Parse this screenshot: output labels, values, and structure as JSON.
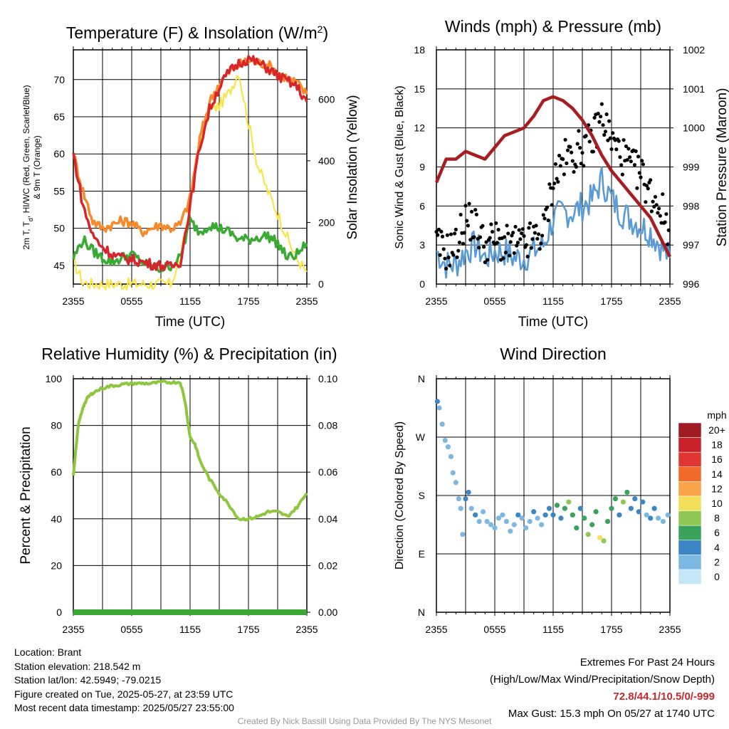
{
  "colors": {
    "temp": "#d7262b",
    "dew": "#3aaa35",
    "heat_index": "#4a3acb",
    "t9m": "#f58a2c",
    "solar": "#fbe44a",
    "wind": "#5b9bd5",
    "gust": "#000000",
    "pressure": "#a71d20",
    "rh": "#8dc63f",
    "precip": "#3aaa35"
  },
  "chart_data": [
    {
      "type": "line",
      "title": "Temperature (F) & Insolation (W/m²)",
      "title_main": "Temperature (F) & Insolation (W/m",
      "title_sup": "2",
      "title_end": ")",
      "xlabel": "Time (UTC)",
      "ylabel_line1": "2m T, T",
      "ylabel_sub": "d",
      "ylabel_line1_end": ", HI/WC (Red, Green, Scarlet/Blue)",
      "ylabel_line2": "& 9m T (Orange)",
      "y2label": "Solar Insolation (Yellow)",
      "x_ticks": [
        "2355",
        "0555",
        "1155",
        "1755",
        "2355"
      ],
      "ylim": [
        42.5,
        74
      ],
      "y_ticks": [
        "45",
        "50",
        "55",
        "60",
        "65",
        "70"
      ],
      "y2lim": [
        0,
        760
      ],
      "y2_ticks": [
        "0",
        "200",
        "400",
        "600"
      ],
      "x": [
        0,
        1,
        2,
        3,
        4,
        5,
        6,
        7,
        8,
        9,
        10,
        11,
        12,
        13,
        14,
        15,
        16,
        17,
        18,
        19,
        20,
        21,
        22,
        23,
        24
      ],
      "series": [
        {
          "key": "t2m",
          "values": [
            60,
            53,
            49,
            47.5,
            46.5,
            46,
            45.8,
            45.5,
            45.2,
            45,
            44.8,
            45.5,
            53,
            61,
            66,
            69,
            71,
            72.2,
            72.8,
            72.2,
            71.5,
            70.5,
            69.8,
            69,
            67
          ]
        },
        {
          "key": "t9m",
          "values": [
            60,
            55,
            51,
            50,
            50.5,
            51,
            50.8,
            49.5,
            50,
            50.5,
            50,
            50.5,
            54,
            62,
            67,
            69.5,
            71,
            72,
            72.5,
            72.3,
            72,
            71,
            70.2,
            69.5,
            68
          ]
        },
        {
          "key": "dewpoint",
          "values": [
            46,
            48.5,
            47,
            46,
            45.5,
            46,
            46.5,
            45.5,
            44.8,
            44.5,
            45,
            46,
            51,
            49.5,
            50.5,
            50,
            49.5,
            48.5,
            48.5,
            48.8,
            49,
            48,
            46,
            46.5,
            48
          ]
        },
        {
          "key": "solar",
          "values": [
            75,
            5,
            0,
            0,
            0,
            0,
            0,
            0,
            0,
            0,
            0,
            80,
            250,
            460,
            560,
            580,
            620,
            690,
            520,
            380,
            300,
            230,
            150,
            80,
            40
          ]
        }
      ]
    },
    {
      "type": "line",
      "title": "Winds (mph) & Pressure (mb)",
      "xlabel": "Time (UTC)",
      "ylabel": "Sonic Wind & Gust (Blue, Black)",
      "y2label": "Station Pressure (Maroon)",
      "x_ticks": [
        "2355",
        "0555",
        "1155",
        "1755",
        "2355"
      ],
      "ylim": [
        0,
        18
      ],
      "y_ticks": [
        "0",
        "3",
        "6",
        "9",
        "12",
        "15",
        "18"
      ],
      "y2lim": [
        996,
        1002
      ],
      "y2_ticks": [
        "996",
        "997",
        "998",
        "999",
        "1000",
        "1001",
        "1002"
      ],
      "x": [
        0,
        1,
        2,
        3,
        4,
        5,
        6,
        7,
        8,
        9,
        10,
        11,
        12,
        13,
        14,
        15,
        16,
        17,
        18,
        19,
        20,
        21,
        22,
        23,
        24
      ],
      "series": [
        {
          "key": "wind",
          "values": [
            2.5,
            1.5,
            1.5,
            2.5,
            3,
            2,
            2.5,
            2.5,
            2,
            2,
            2.5,
            3,
            5,
            5.5,
            5.5,
            6,
            6.5,
            8,
            6.5,
            5.5,
            5,
            4.5,
            4,
            3,
            2
          ]
        },
        {
          "key": "gust",
          "values": [
            3,
            2.5,
            3,
            5,
            4.5,
            3,
            3.5,
            3,
            3,
            3,
            3.5,
            4,
            8,
            9.5,
            10,
            10.5,
            11,
            13,
            11,
            10,
            9,
            8.5,
            7,
            6,
            4
          ]
        },
        {
          "key": "pressure",
          "values": [
            998.6,
            999.2,
            999.2,
            999.4,
            999.3,
            999.2,
            999.5,
            999.8,
            999.9,
            1000.0,
            1000.3,
            1000.7,
            1000.8,
            1000.7,
            1000.5,
            1000.2,
            999.8,
            999.3,
            998.9,
            998.6,
            998.3,
            998.0,
            997.7,
            997.2,
            996.7
          ]
        }
      ]
    },
    {
      "type": "line",
      "title": "Relative Humidity (%) & Precipitation (in)",
      "ylabel": "Percent & Precipitation",
      "x_ticks": [
        "2355",
        "0555",
        "1155",
        "1755",
        "2355"
      ],
      "ylim": [
        0,
        100
      ],
      "y_ticks": [
        "0",
        "20",
        "40",
        "60",
        "80",
        "100"
      ],
      "y2lim": [
        0,
        0.1
      ],
      "y2_ticks": [
        "0.00",
        "0.02",
        "0.04",
        "0.06",
        "0.08",
        "0.10"
      ],
      "x": [
        0,
        0.5,
        1,
        1.5,
        2,
        3,
        4,
        5,
        6,
        7,
        8,
        9,
        10,
        11,
        11.5,
        12,
        12.5,
        13,
        14,
        15,
        16,
        17,
        18,
        19,
        20,
        21,
        22,
        23,
        24
      ],
      "series": [
        {
          "key": "rh",
          "values": [
            58,
            80,
            88,
            92,
            94,
            96,
            97,
            97.5,
            98,
            98,
            98,
            98.5,
            98.5,
            98.5,
            90,
            75,
            72,
            65,
            57,
            51,
            46,
            40,
            40,
            41,
            43,
            43,
            41,
            45,
            51
          ]
        },
        {
          "key": "precip",
          "values": [
            0,
            0,
            0,
            0,
            0,
            0,
            0,
            0,
            0,
            0,
            0,
            0,
            0,
            0,
            0,
            0,
            0,
            0,
            0,
            0,
            0,
            0,
            0,
            0,
            0,
            0,
            0,
            0,
            0
          ]
        }
      ]
    },
    {
      "type": "scatter",
      "title": "Wind Direction",
      "ylabel": "Direction (Colored By Speed)",
      "x_ticks": [
        "2355",
        "0555",
        "1155",
        "1755",
        "2355"
      ],
      "ylim": [
        0,
        360
      ],
      "y_ticks": [
        "N",
        "E",
        "S",
        "W",
        "N"
      ],
      "legend_title": "mph",
      "legend_labels": [
        "20+",
        "18",
        "16",
        "14",
        "12",
        "10",
        "8",
        "6",
        "4",
        "2",
        "0"
      ],
      "legend_colors": [
        "#9e1c22",
        "#c8232b",
        "#e03530",
        "#f26a2a",
        "#f9a449",
        "#f3e05a",
        "#91c853",
        "#3aa35b",
        "#3b86c4",
        "#7db8e2",
        "#c6e5f5"
      ],
      "points": [
        {
          "t": 0.1,
          "dir": 325,
          "spd": 3
        },
        {
          "t": 0.3,
          "dir": 315,
          "spd": 2
        },
        {
          "t": 0.6,
          "dir": 290,
          "spd": 2
        },
        {
          "t": 0.9,
          "dir": 265,
          "spd": 1
        },
        {
          "t": 1.2,
          "dir": 255,
          "spd": 1
        },
        {
          "t": 1.5,
          "dir": 240,
          "spd": 1
        },
        {
          "t": 1.7,
          "dir": 215,
          "spd": 1
        },
        {
          "t": 2.0,
          "dir": 200,
          "spd": 2
        },
        {
          "t": 2.3,
          "dir": 175,
          "spd": 2
        },
        {
          "t": 2.5,
          "dir": 160,
          "spd": 2
        },
        {
          "t": 2.7,
          "dir": 120,
          "spd": 1
        },
        {
          "t": 3.0,
          "dir": 175,
          "spd": 3
        },
        {
          "t": 3.3,
          "dir": 185,
          "spd": 3
        },
        {
          "t": 3.6,
          "dir": 160,
          "spd": 2
        },
        {
          "t": 4.0,
          "dir": 150,
          "spd": 3
        },
        {
          "t": 4.4,
          "dir": 140,
          "spd": 2
        },
        {
          "t": 4.8,
          "dir": 155,
          "spd": 2
        },
        {
          "t": 5.2,
          "dir": 140,
          "spd": 2
        },
        {
          "t": 5.6,
          "dir": 135,
          "spd": 1
        },
        {
          "t": 6.0,
          "dir": 130,
          "spd": 1
        },
        {
          "t": 6.4,
          "dir": 145,
          "spd": 2
        },
        {
          "t": 6.8,
          "dir": 150,
          "spd": 2
        },
        {
          "t": 7.2,
          "dir": 140,
          "spd": 2
        },
        {
          "t": 7.6,
          "dir": 125,
          "spd": 1
        },
        {
          "t": 8.0,
          "dir": 135,
          "spd": 2
        },
        {
          "t": 8.4,
          "dir": 150,
          "spd": 3
        },
        {
          "t": 8.8,
          "dir": 145,
          "spd": 2
        },
        {
          "t": 9.2,
          "dir": 130,
          "spd": 1
        },
        {
          "t": 9.6,
          "dir": 140,
          "spd": 2
        },
        {
          "t": 10.0,
          "dir": 155,
          "spd": 3
        },
        {
          "t": 10.4,
          "dir": 145,
          "spd": 2
        },
        {
          "t": 10.8,
          "dir": 135,
          "spd": 1
        },
        {
          "t": 11.2,
          "dir": 150,
          "spd": 3
        },
        {
          "t": 11.6,
          "dir": 160,
          "spd": 4
        },
        {
          "t": 12.0,
          "dir": 150,
          "spd": 3
        },
        {
          "t": 12.4,
          "dir": 165,
          "spd": 5
        },
        {
          "t": 12.8,
          "dir": 145,
          "spd": 4
        },
        {
          "t": 13.2,
          "dir": 160,
          "spd": 6
        },
        {
          "t": 13.6,
          "dir": 170,
          "spd": 7
        },
        {
          "t": 14.0,
          "dir": 150,
          "spd": 5
        },
        {
          "t": 14.4,
          "dir": 130,
          "spd": 6
        },
        {
          "t": 14.8,
          "dir": 160,
          "spd": 4
        },
        {
          "t": 15.2,
          "dir": 145,
          "spd": 6
        },
        {
          "t": 15.6,
          "dir": 120,
          "spd": 7
        },
        {
          "t": 16.0,
          "dir": 135,
          "spd": 5
        },
        {
          "t": 16.4,
          "dir": 155,
          "spd": 6
        },
        {
          "t": 16.8,
          "dir": 115,
          "spd": 9
        },
        {
          "t": 17.2,
          "dir": 110,
          "spd": 8
        },
        {
          "t": 17.6,
          "dir": 140,
          "spd": 6
        },
        {
          "t": 18.0,
          "dir": 160,
          "spd": 5
        },
        {
          "t": 18.4,
          "dir": 175,
          "spd": 6
        },
        {
          "t": 18.8,
          "dir": 150,
          "spd": 4
        },
        {
          "t": 19.2,
          "dir": 170,
          "spd": 7
        },
        {
          "t": 19.6,
          "dir": 185,
          "spd": 5
        },
        {
          "t": 20.0,
          "dir": 160,
          "spd": 4
        },
        {
          "t": 20.4,
          "dir": 175,
          "spd": 3
        },
        {
          "t": 20.8,
          "dir": 155,
          "spd": 3
        },
        {
          "t": 21.2,
          "dir": 170,
          "spd": 4
        },
        {
          "t": 21.6,
          "dir": 150,
          "spd": 2
        },
        {
          "t": 22.0,
          "dir": 145,
          "spd": 3
        },
        {
          "t": 22.4,
          "dir": 160,
          "spd": 3
        },
        {
          "t": 22.8,
          "dir": 145,
          "spd": 2
        },
        {
          "t": 23.3,
          "dir": 140,
          "spd": 2
        },
        {
          "t": 23.8,
          "dir": 150,
          "spd": 2
        }
      ]
    }
  ],
  "info": {
    "location": "Location: Brant",
    "elevation": "Station elevation: 218.542 m",
    "latlon": "Station lat/lon: 42.5949; -79.0215",
    "created": "Figure created on Tue, 2025-05-27, at 23:59 UTC",
    "recent": "Most recent data timestamp: 2025/05/27 23:55:00"
  },
  "extremes": {
    "title": "Extremes For Past 24 Hours",
    "subtitle": "(High/Low/Max Wind/Precipitation/Snow Depth)",
    "values": "72.8/44.1/10.5/0/-999",
    "gust": "Max Gust: 15.3 mph On 05/27 at 1740 UTC"
  },
  "credit": "Created By Nick Bassill Using Data Provided By The NYS Mesonet"
}
